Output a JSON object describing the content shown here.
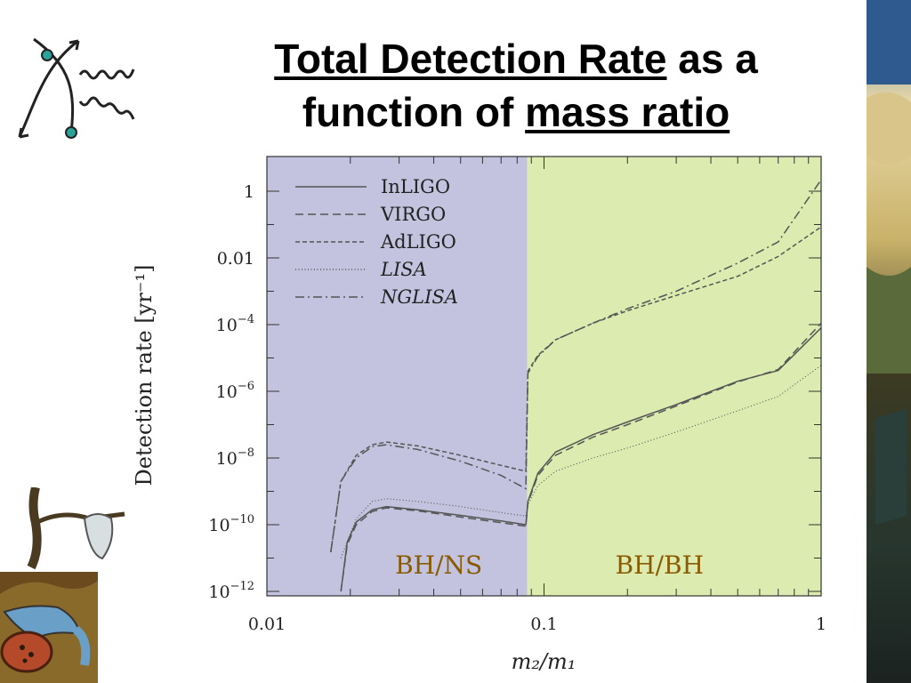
{
  "slide": {
    "title_part1": "Total Detection Rate",
    "title_part2": " as a",
    "title_part3": "function of ",
    "title_part4": "mass ratio"
  },
  "icons": {
    "top_left": "feynman-diagram-icon",
    "right_edge": "surreal-painting-strip",
    "bottom_left": "melting-clock-painting"
  },
  "colors": {
    "bhns_region": "#c3c3e0",
    "bhbh_region": "#dcebb0",
    "region_label": "#8a5a00",
    "curve": "#555555"
  },
  "chart_data": {
    "type": "line",
    "title": "",
    "xlabel": "m₂/m₁",
    "ylabel": "Detection rate [yr⁻¹]",
    "x_scale": "log",
    "y_scale": "log",
    "xlim": [
      0.01,
      1
    ],
    "ylim": [
      1e-12,
      3
    ],
    "x_ticks": [
      {
        "value": 0.01,
        "label": "0.01"
      },
      {
        "value": 0.1,
        "label": "0.1"
      },
      {
        "value": 1,
        "label": "1"
      }
    ],
    "y_ticks": [
      {
        "value": 1,
        "label": "1",
        "sup": ""
      },
      {
        "value": 0.01,
        "label": "0.01",
        "sup": ""
      },
      {
        "value": 0.0001,
        "label": "10",
        "sup": "−4"
      },
      {
        "value": 1e-06,
        "label": "10",
        "sup": "−6"
      },
      {
        "value": 1e-08,
        "label": "10",
        "sup": "−8"
      },
      {
        "value": 1e-10,
        "label": "10",
        "sup": "−10"
      },
      {
        "value": 1e-12,
        "label": "10",
        "sup": "−12"
      }
    ],
    "regions": [
      {
        "label": "BH/NS",
        "x_from": 0.01,
        "x_to": 0.087
      },
      {
        "label": "BH/BH",
        "x_from": 0.087,
        "x_to": 1
      }
    ],
    "legend_position": "top-left",
    "series": [
      {
        "name": "InLIGO",
        "italic": false,
        "dash": "solid",
        "points": [
          [
            0.0185,
            1e-12
          ],
          [
            0.0195,
            3e-11
          ],
          [
            0.021,
            1.2e-10
          ],
          [
            0.024,
            2.8e-10
          ],
          [
            0.027,
            3.5e-10
          ],
          [
            0.035,
            2.8e-10
          ],
          [
            0.05,
            1.9e-10
          ],
          [
            0.07,
            1.3e-10
          ],
          [
            0.086,
            1e-10
          ],
          [
            0.0875,
            5e-10
          ],
          [
            0.095,
            3.5e-09
          ],
          [
            0.11,
            1.5e-08
          ],
          [
            0.15,
            5e-08
          ],
          [
            0.2,
            1.2e-07
          ],
          [
            0.3,
            4e-07
          ],
          [
            0.5,
            2e-06
          ],
          [
            0.7,
            4.2e-06
          ],
          [
            1,
            8e-05
          ]
        ]
      },
      {
        "name": "VIRGO",
        "italic": false,
        "dash": "long",
        "points": [
          [
            0.0185,
            1e-12
          ],
          [
            0.0195,
            2.5e-11
          ],
          [
            0.021,
            1e-10
          ],
          [
            0.024,
            2.5e-10
          ],
          [
            0.027,
            3.2e-10
          ],
          [
            0.035,
            2.6e-10
          ],
          [
            0.05,
            1.7e-10
          ],
          [
            0.07,
            1.15e-10
          ],
          [
            0.086,
            9e-11
          ],
          [
            0.0875,
            4.5e-10
          ],
          [
            0.095,
            3e-09
          ],
          [
            0.11,
            1.2e-08
          ],
          [
            0.15,
            4.2e-08
          ],
          [
            0.2,
            1e-07
          ],
          [
            0.3,
            3.6e-07
          ],
          [
            0.5,
            1.9e-06
          ],
          [
            0.7,
            4.5e-06
          ],
          [
            1,
            0.00011
          ]
        ]
      },
      {
        "name": "AdLIGO",
        "italic": false,
        "dash": "short",
        "points": [
          [
            0.017,
            1.5e-11
          ],
          [
            0.0185,
            2e-09
          ],
          [
            0.021,
            1.2e-08
          ],
          [
            0.024,
            2.5e-08
          ],
          [
            0.027,
            3e-08
          ],
          [
            0.035,
            2.3e-08
          ],
          [
            0.05,
            1.2e-08
          ],
          [
            0.07,
            6e-09
          ],
          [
            0.086,
            4e-09
          ],
          [
            0.0875,
            4e-06
          ],
          [
            0.095,
            1.2e-05
          ],
          [
            0.11,
            3.5e-05
          ],
          [
            0.15,
            0.00011
          ],
          [
            0.2,
            0.00026
          ],
          [
            0.3,
            0.00075
          ],
          [
            0.5,
            0.0028
          ],
          [
            0.7,
            0.011
          ],
          [
            1,
            0.085
          ]
        ]
      },
      {
        "name": "LISA",
        "italic": true,
        "dash": "dotted",
        "points": [
          [
            0.0185,
            1e-11
          ],
          [
            0.021,
            1.5e-10
          ],
          [
            0.024,
            5e-10
          ],
          [
            0.027,
            6e-10
          ],
          [
            0.035,
            5e-10
          ],
          [
            0.05,
            3.5e-10
          ],
          [
            0.07,
            2.3e-10
          ],
          [
            0.086,
            1.8e-10
          ],
          [
            0.0875,
            4e-10
          ],
          [
            0.095,
            1.5e-09
          ],
          [
            0.11,
            4e-09
          ],
          [
            0.15,
            1e-08
          ],
          [
            0.2,
            2e-08
          ],
          [
            0.3,
            6e-08
          ],
          [
            0.5,
            2.6e-07
          ],
          [
            0.7,
            7e-07
          ],
          [
            1,
            6e-06
          ]
        ]
      },
      {
        "name": "NGLISA",
        "italic": true,
        "dash": "dashdot",
        "points": [
          [
            0.017,
            1.5e-11
          ],
          [
            0.0185,
            2e-09
          ],
          [
            0.021,
            1e-08
          ],
          [
            0.024,
            2.2e-08
          ],
          [
            0.027,
            2.5e-08
          ],
          [
            0.035,
            1.8e-08
          ],
          [
            0.05,
            8e-09
          ],
          [
            0.07,
            3e-09
          ],
          [
            0.086,
            1.2e-09
          ],
          [
            0.0875,
            3.5e-06
          ],
          [
            0.095,
            1.1e-05
          ],
          [
            0.11,
            3.5e-05
          ],
          [
            0.15,
            0.00011
          ],
          [
            0.2,
            0.0003
          ],
          [
            0.3,
            0.001
          ],
          [
            0.5,
            0.007
          ],
          [
            0.7,
            0.03
          ],
          [
            1,
            2.2
          ]
        ]
      }
    ]
  }
}
